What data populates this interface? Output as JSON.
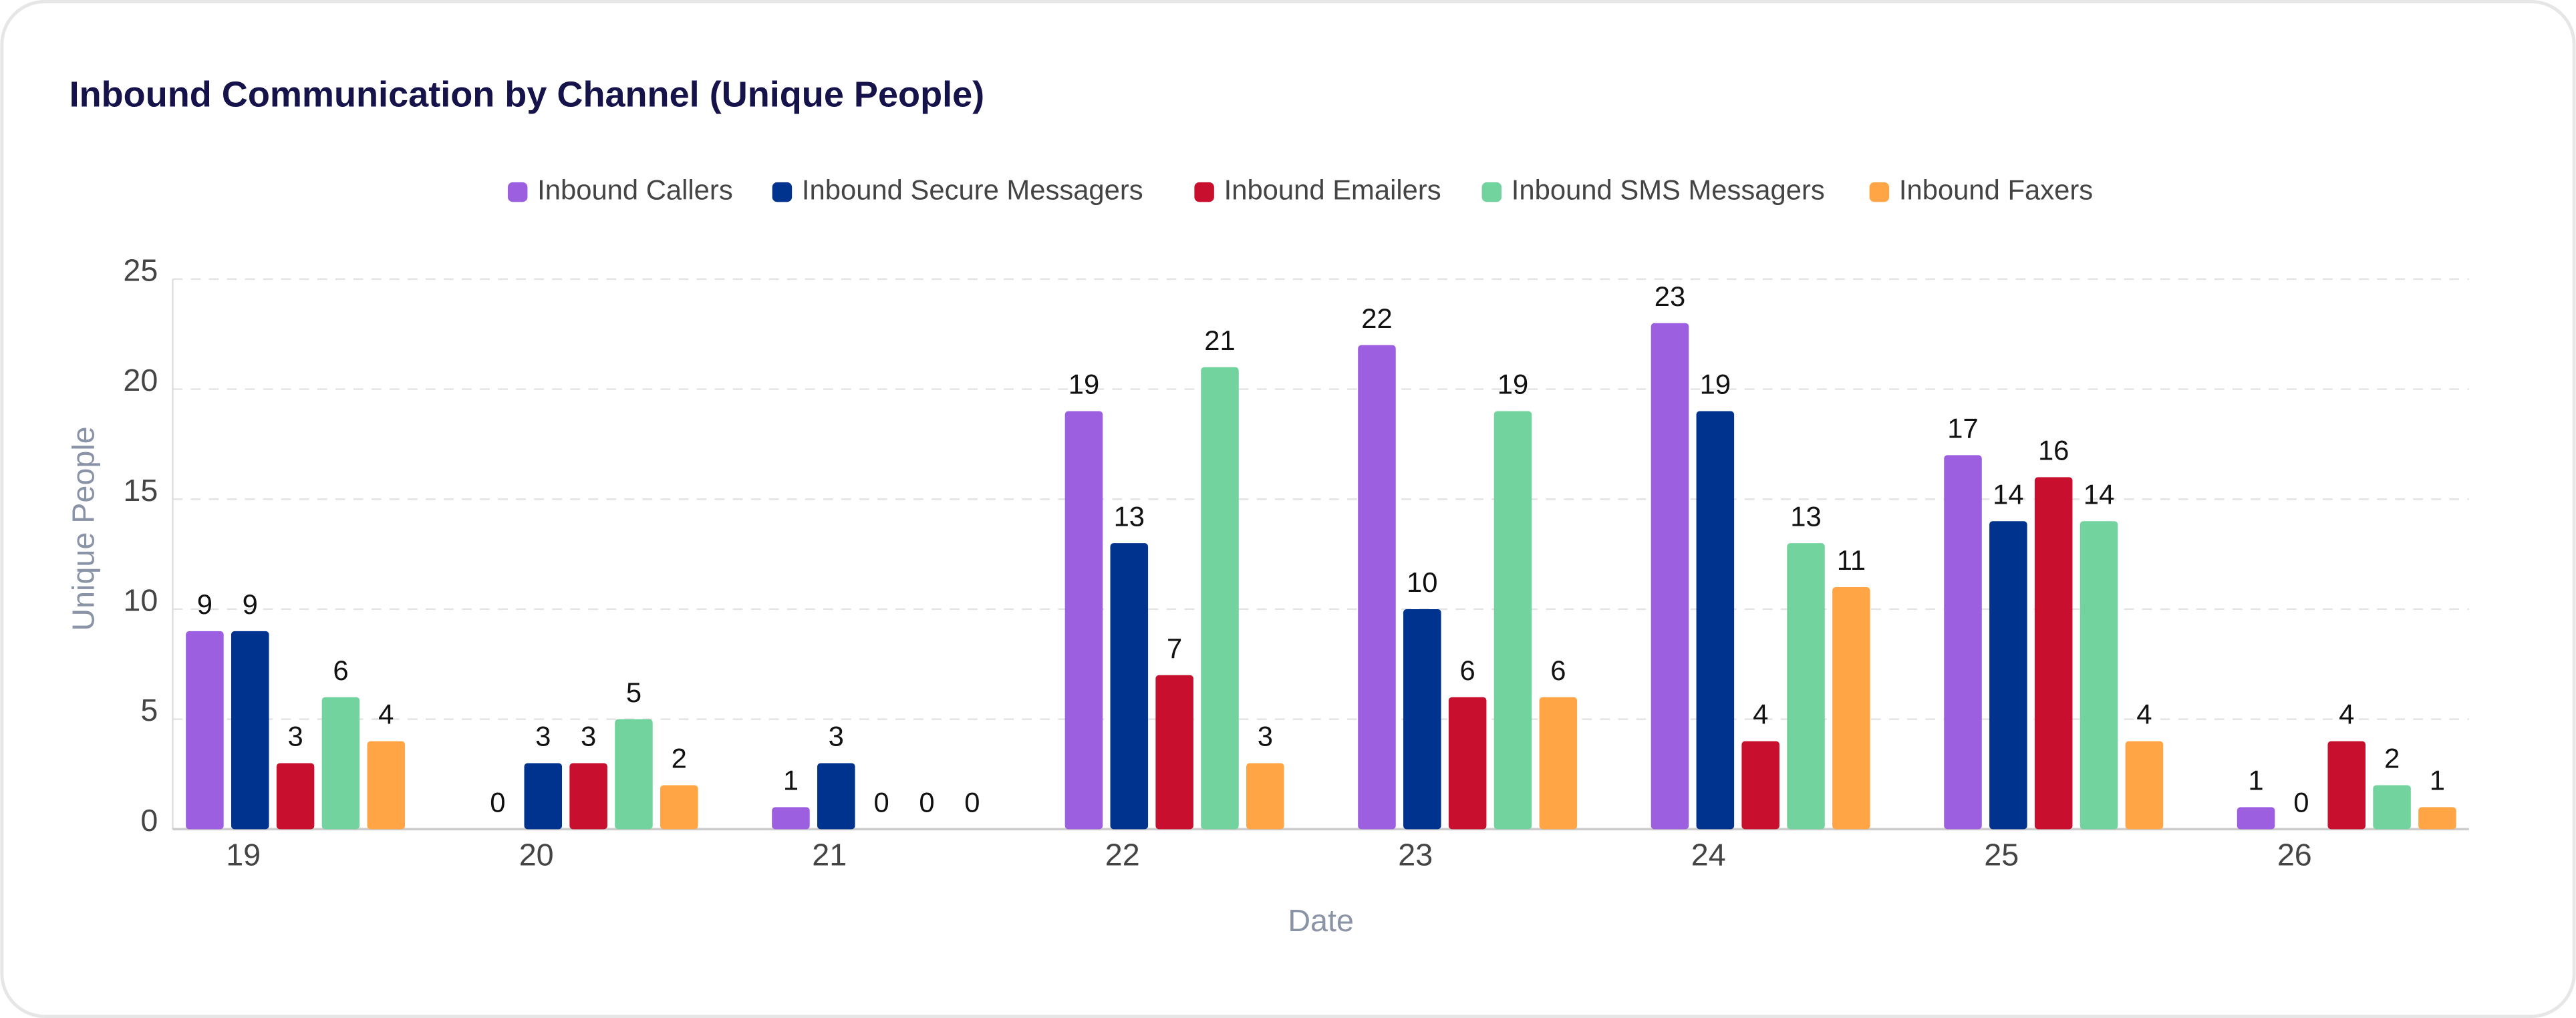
{
  "chart_data": {
    "type": "bar",
    "title": "Inbound Communication by Channel (Unique People)",
    "x_label": "Date",
    "y_label": "Unique People",
    "categories": [
      "19",
      "20",
      "21",
      "22",
      "23",
      "24",
      "25",
      "26"
    ],
    "series": [
      {
        "name": "Inbound Callers",
        "color": "#9c5fe0",
        "values": [
          9,
          0,
          1,
          19,
          22,
          23,
          17,
          1
        ]
      },
      {
        "name": "Inbound Secure Messagers",
        "color": "#00338d",
        "values": [
          9,
          3,
          3,
          13,
          10,
          19,
          14,
          0
        ]
      },
      {
        "name": "Inbound Emailers",
        "color": "#c8102e",
        "values": [
          3,
          3,
          0,
          7,
          6,
          4,
          16,
          4
        ]
      },
      {
        "name": "Inbound SMS Messagers",
        "color": "#72d39e",
        "values": [
          6,
          5,
          0,
          21,
          19,
          13,
          14,
          2
        ]
      },
      {
        "name": "Inbound Faxers",
        "color": "#ffa546",
        "values": [
          4,
          2,
          0,
          3,
          6,
          11,
          4,
          1
        ]
      }
    ],
    "ylim": [
      0,
      25
    ],
    "yticks": [
      0,
      5,
      10,
      15,
      20,
      25
    ],
    "grid": true,
    "legend": "top"
  }
}
